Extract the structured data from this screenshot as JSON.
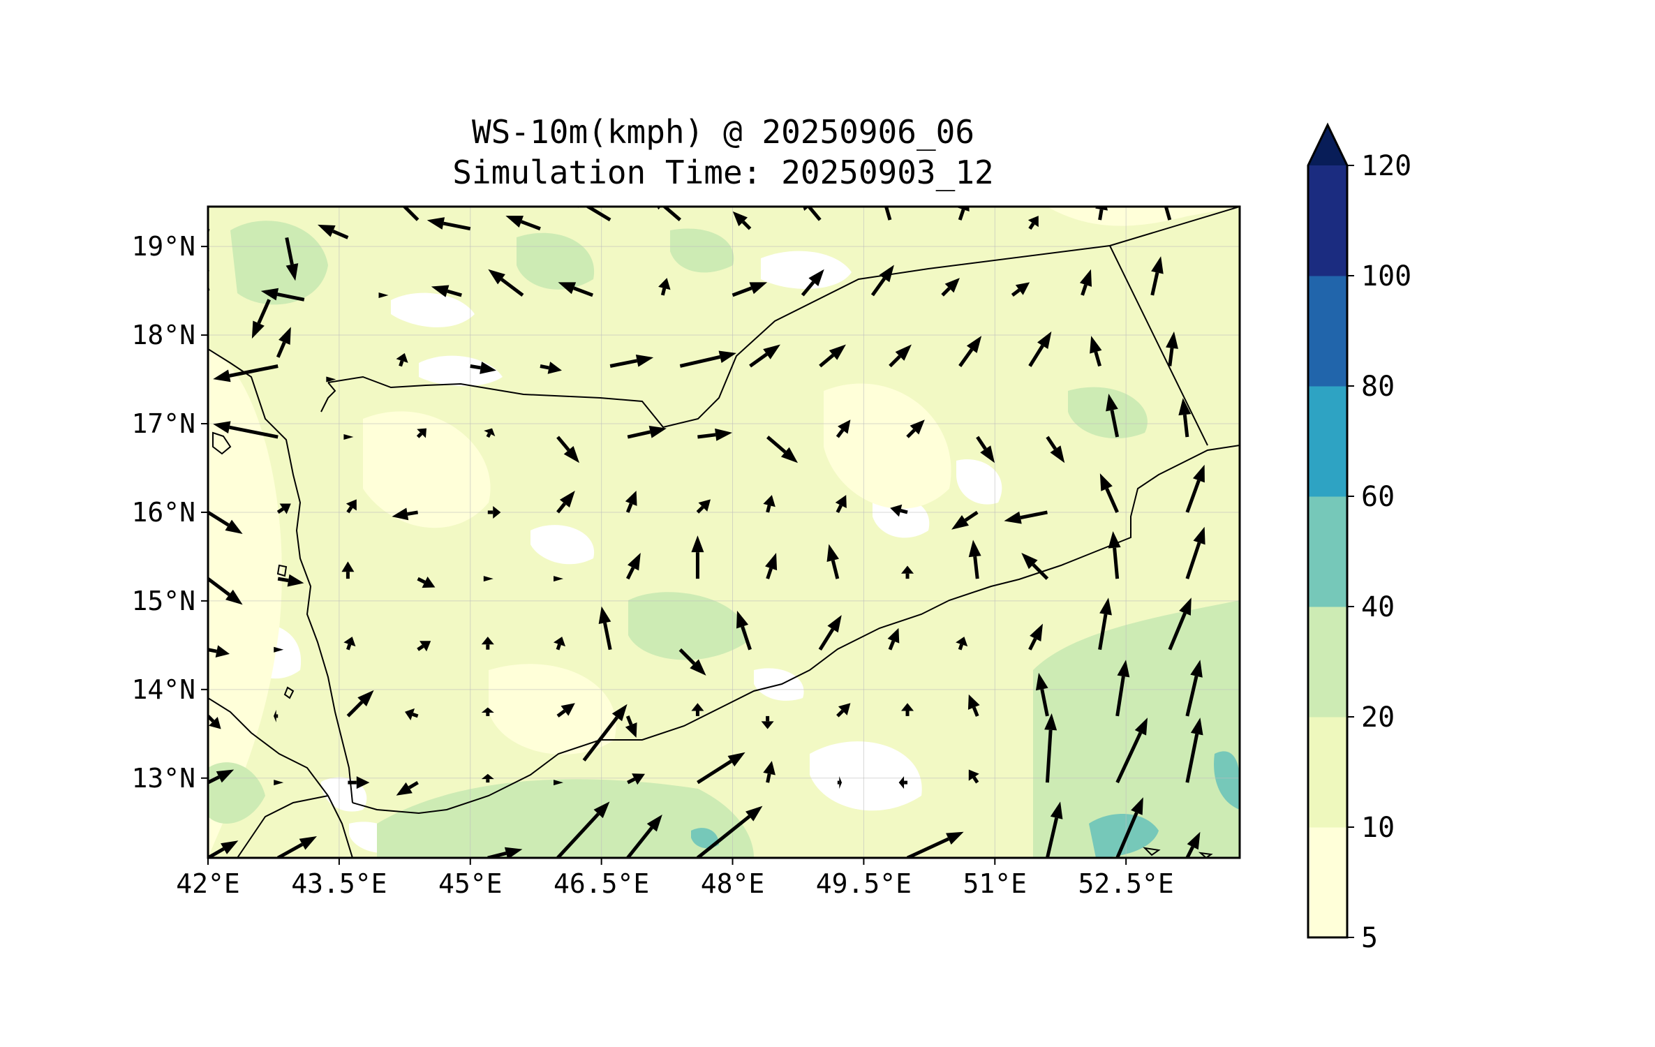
{
  "title": {
    "line1": "WS-10m(kmph) @ 20250906_06",
    "line2": "Simulation Time: 20250903_12"
  },
  "map": {
    "lon_range": [
      42.0,
      53.8
    ],
    "lat_range": [
      12.1,
      19.45
    ],
    "x_ticks": [
      {
        "lon": 42.0,
        "label": "42°E"
      },
      {
        "lon": 43.5,
        "label": "43.5°E"
      },
      {
        "lon": 45.0,
        "label": "45°E"
      },
      {
        "lon": 46.5,
        "label": "46.5°E"
      },
      {
        "lon": 48.0,
        "label": "48°E"
      },
      {
        "lon": 49.5,
        "label": "49.5°E"
      },
      {
        "lon": 51.0,
        "label": "51°E"
      },
      {
        "lon": 52.5,
        "label": "52.5°E"
      }
    ],
    "y_ticks": [
      {
        "lat": 19.0,
        "label": "19°N"
      },
      {
        "lat": 18.0,
        "label": "18°N"
      },
      {
        "lat": 17.0,
        "label": "17°N"
      },
      {
        "lat": 16.0,
        "label": "16°N"
      },
      {
        "lat": 15.0,
        "label": "15°N"
      },
      {
        "lat": 14.0,
        "label": "14°N"
      },
      {
        "lat": 13.0,
        "label": "13°N"
      }
    ],
    "grid": true,
    "background_color": "#f2f9c4"
  },
  "colorbar": {
    "levels": [
      5,
      10,
      20,
      40,
      60,
      80,
      100,
      120
    ],
    "labels": [
      "5",
      "10",
      "20",
      "40",
      "60",
      "80",
      "100",
      "120"
    ],
    "colors": [
      "#ffffd9",
      "#eef8bd",
      "#cdebb4",
      "#76c8b9",
      "#2ea3c3",
      "#2165ab",
      "#1b2c80"
    ],
    "extend_color": "#081d58",
    "extend": "max"
  },
  "wind_vectors": [
    [
      42.0,
      19.2,
      -0.2,
      -0.8
    ],
    [
      42.9,
      19.1,
      0.2,
      -1.0
    ],
    [
      43.6,
      19.1,
      -0.7,
      0.3
    ],
    [
      44.4,
      19.3,
      -0.7,
      0.7
    ],
    [
      45.0,
      19.2,
      -1.0,
      0.2
    ],
    [
      45.8,
      19.2,
      -0.8,
      0.3
    ],
    [
      46.6,
      19.3,
      -1.0,
      0.6
    ],
    [
      47.4,
      19.3,
      -0.7,
      0.6
    ],
    [
      48.2,
      19.2,
      -0.4,
      0.4
    ],
    [
      49.0,
      19.3,
      -0.5,
      0.6
    ],
    [
      49.8,
      19.3,
      -0.2,
      0.7
    ],
    [
      50.6,
      19.3,
      0.2,
      0.6
    ],
    [
      51.4,
      19.2,
      0.2,
      0.3
    ],
    [
      52.2,
      19.3,
      0.1,
      0.6
    ],
    [
      53.0,
      19.3,
      -0.2,
      0.7
    ],
    [
      42.0,
      18.5,
      -0.2,
      0.8
    ],
    [
      42.7,
      18.4,
      -0.4,
      -0.9
    ],
    [
      43.1,
      18.4,
      -1.0,
      0.2
    ],
    [
      44.0,
      18.45,
      0,
      0
    ],
    [
      44.9,
      18.45,
      -0.7,
      0.2
    ],
    [
      45.6,
      18.45,
      -0.8,
      0.6
    ],
    [
      46.4,
      18.45,
      -0.8,
      0.3
    ],
    [
      47.2,
      18.45,
      0.1,
      0.4
    ],
    [
      48.0,
      18.45,
      0.8,
      0.3
    ],
    [
      48.8,
      18.45,
      0.5,
      0.6
    ],
    [
      49.6,
      18.45,
      0.5,
      0.7
    ],
    [
      50.4,
      18.45,
      0.4,
      0.4
    ],
    [
      51.2,
      18.45,
      0.4,
      0.3
    ],
    [
      52.0,
      18.45,
      0.2,
      0.6
    ],
    [
      52.8,
      18.45,
      0.2,
      0.9
    ],
    [
      42.8,
      17.65,
      -1.5,
      -0.3
    ],
    [
      42.8,
      17.75,
      0.3,
      0.7
    ],
    [
      43.4,
      17.5,
      0,
      0
    ],
    [
      44.2,
      17.65,
      0.1,
      0.3
    ],
    [
      45.0,
      17.65,
      0.6,
      -0.1
    ],
    [
      45.8,
      17.65,
      0.5,
      -0.1
    ],
    [
      46.6,
      17.65,
      1.0,
      0.2
    ],
    [
      47.4,
      17.65,
      1.3,
      0.3
    ],
    [
      48.2,
      17.65,
      0.7,
      0.5
    ],
    [
      49.0,
      17.65,
      0.6,
      0.5
    ],
    [
      49.8,
      17.65,
      0.5,
      0.5
    ],
    [
      50.6,
      17.65,
      0.5,
      0.7
    ],
    [
      51.4,
      17.65,
      0.5,
      0.8
    ],
    [
      52.2,
      17.65,
      -0.2,
      0.7
    ],
    [
      53.0,
      17.65,
      0.1,
      0.8
    ],
    [
      42.0,
      16.85,
      -0.7,
      0.1
    ],
    [
      42.8,
      16.85,
      -1.5,
      0.3
    ],
    [
      43.6,
      16.85,
      0,
      0
    ],
    [
      44.4,
      16.85,
      0.2,
      0.2
    ],
    [
      45.2,
      16.85,
      0.1,
      0.2
    ],
    [
      46.0,
      16.85,
      0.5,
      -0.6
    ],
    [
      46.8,
      16.85,
      0.9,
      0.2
    ],
    [
      47.6,
      16.85,
      0.8,
      0.1
    ],
    [
      48.4,
      16.85,
      0.7,
      -0.6
    ],
    [
      49.2,
      16.85,
      0.3,
      0.4
    ],
    [
      50.0,
      16.85,
      0.4,
      0.4
    ],
    [
      50.8,
      16.85,
      0.4,
      -0.6
    ],
    [
      51.6,
      16.85,
      0.4,
      -0.6
    ],
    [
      52.4,
      16.85,
      -0.2,
      1.0
    ],
    [
      53.2,
      16.85,
      -0.1,
      0.9
    ],
    [
      42.0,
      16.0,
      0.8,
      -0.5
    ],
    [
      42.8,
      16.0,
      0.3,
      0.2
    ],
    [
      43.6,
      16.0,
      0.2,
      0.3
    ],
    [
      44.4,
      16.0,
      -0.6,
      -0.1
    ],
    [
      45.2,
      16.0,
      0.3,
      0
    ],
    [
      46.0,
      16.0,
      0.4,
      0.5
    ],
    [
      46.8,
      16.0,
      0.2,
      0.5
    ],
    [
      47.6,
      16.0,
      0.3,
      0.3
    ],
    [
      48.4,
      16.0,
      0.1,
      0.4
    ],
    [
      49.2,
      16.0,
      0.2,
      0.4
    ],
    [
      50.0,
      16.0,
      -0.4,
      0.1
    ],
    [
      50.8,
      16.0,
      -0.6,
      -0.4
    ],
    [
      51.6,
      16.0,
      -1.0,
      -0.2
    ],
    [
      52.4,
      16.0,
      -0.4,
      0.9
    ],
    [
      53.2,
      16.0,
      0.4,
      1.1
    ],
    [
      42.0,
      15.25,
      0.8,
      -0.6
    ],
    [
      42.8,
      15.25,
      0.6,
      -0.1
    ],
    [
      43.6,
      15.25,
      0,
      0.4
    ],
    [
      44.4,
      15.25,
      0.4,
      -0.2
    ],
    [
      45.2,
      15.25,
      0,
      0
    ],
    [
      46.0,
      15.25,
      0,
      0
    ],
    [
      46.8,
      15.25,
      0.3,
      0.6
    ],
    [
      47.6,
      15.25,
      0,
      1.0
    ],
    [
      48.4,
      15.25,
      0.2,
      0.6
    ],
    [
      49.2,
      15.25,
      -0.2,
      0.8
    ],
    [
      50.0,
      15.25,
      0,
      0.3
    ],
    [
      50.8,
      15.25,
      -0.1,
      0.9
    ],
    [
      51.6,
      15.25,
      -0.6,
      0.6
    ],
    [
      52.4,
      15.25,
      -0.1,
      1.1
    ],
    [
      53.2,
      15.25,
      0.4,
      1.2
    ],
    [
      42.0,
      14.45,
      0.5,
      -0.1
    ],
    [
      42.8,
      14.45,
      0,
      0
    ],
    [
      43.6,
      14.45,
      0.1,
      0.3
    ],
    [
      44.4,
      14.45,
      0.3,
      0.2
    ],
    [
      45.2,
      14.45,
      0,
      0.3
    ],
    [
      46.0,
      14.45,
      0.1,
      0.3
    ],
    [
      46.6,
      14.45,
      -0.2,
      1.0
    ],
    [
      47.4,
      14.45,
      0.6,
      -0.6
    ],
    [
      48.2,
      14.45,
      -0.3,
      0.9
    ],
    [
      49.0,
      14.45,
      0.5,
      0.8
    ],
    [
      49.8,
      14.45,
      0.2,
      0.5
    ],
    [
      50.6,
      14.45,
      0.1,
      0.3
    ],
    [
      51.4,
      14.45,
      0.3,
      0.6
    ],
    [
      52.2,
      14.45,
      0.2,
      1.2
    ],
    [
      53.0,
      14.45,
      0.5,
      1.2
    ],
    [
      42.0,
      13.7,
      0.3,
      -0.3
    ],
    [
      42.8,
      13.7,
      -0.1,
      0
    ],
    [
      43.6,
      13.7,
      0.6,
      0.6
    ],
    [
      44.4,
      13.7,
      -0.3,
      0.1
    ],
    [
      45.2,
      13.7,
      0,
      0.2
    ],
    [
      46.0,
      13.7,
      0.4,
      0.3
    ],
    [
      46.8,
      13.7,
      0.2,
      -0.5
    ],
    [
      47.6,
      13.7,
      0,
      0.3
    ],
    [
      48.4,
      13.7,
      0,
      -0.3
    ],
    [
      49.2,
      13.7,
      0.3,
      0.3
    ],
    [
      50.0,
      13.7,
      0,
      0.3
    ],
    [
      50.8,
      13.7,
      -0.2,
      0.5
    ],
    [
      51.6,
      13.7,
      -0.2,
      1.0
    ],
    [
      52.4,
      13.7,
      0.2,
      1.3
    ],
    [
      53.2,
      13.7,
      0.3,
      1.3
    ],
    [
      42.0,
      12.95,
      0.6,
      0.3
    ],
    [
      42.8,
      12.95,
      0,
      0
    ],
    [
      43.6,
      12.95,
      0.5,
      0
    ],
    [
      44.4,
      12.95,
      -0.5,
      -0.3
    ],
    [
      45.2,
      12.95,
      0,
      0.2
    ],
    [
      46.0,
      12.95,
      0,
      0
    ],
    [
      46.8,
      12.95,
      0.4,
      0.2
    ],
    [
      47.6,
      12.95,
      1.1,
      0.7
    ],
    [
      48.4,
      12.95,
      0.1,
      0.5
    ],
    [
      49.2,
      12.95,
      0.1,
      0
    ],
    [
      50.0,
      12.95,
      -0.2,
      0
    ],
    [
      50.8,
      12.95,
      -0.2,
      0.3
    ],
    [
      51.6,
      12.95,
      0.1,
      1.6
    ],
    [
      52.4,
      12.95,
      0.7,
      1.5
    ],
    [
      53.2,
      12.95,
      0.3,
      1.5
    ],
    [
      42.0,
      12.1,
      0.7,
      0.4
    ],
    [
      42.8,
      12.1,
      0.9,
      0.5
    ],
    [
      45.2,
      12.1,
      0.8,
      0.2
    ],
    [
      46.0,
      12.1,
      1.2,
      1.3
    ],
    [
      46.8,
      12.1,
      0.8,
      1.0
    ],
    [
      47.6,
      12.1,
      1.5,
      1.2
    ],
    [
      50.0,
      12.1,
      1.3,
      0.6
    ],
    [
      51.6,
      12.1,
      0.3,
      1.3
    ],
    [
      52.4,
      12.1,
      0.6,
      1.4
    ],
    [
      53.2,
      12.1,
      0.3,
      0.6
    ],
    [
      46.3,
      13.2,
      1.0,
      1.3
    ]
  ]
}
